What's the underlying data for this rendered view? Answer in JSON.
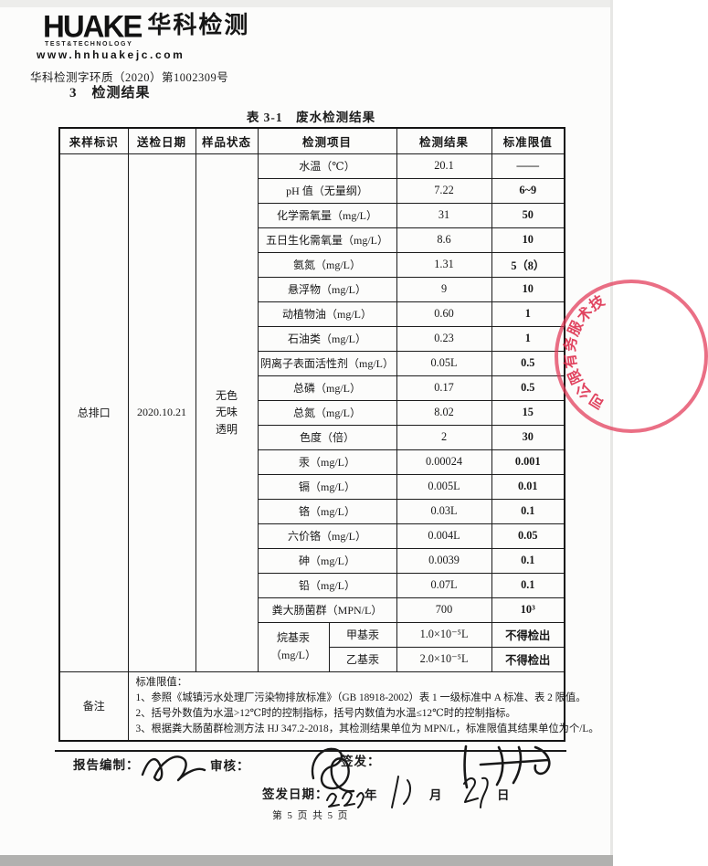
{
  "theme": {
    "stamp_red": "#e23856",
    "ink": "#1b1b1b"
  },
  "letterhead": {
    "logo_text": "HUAKE",
    "logo_cn": "华科检测",
    "logo_sub": "TEST&TECHNOLOGY",
    "website": "www.hnhuakejc.com",
    "doc_number": "华科检测字环质（2020）第1002309号"
  },
  "section_heading": "3　检测结果",
  "table_title": "表 3-1　废水检测结果",
  "table": {
    "headers": [
      "来样标识",
      "送检日期",
      "样品状态",
      "检测项目",
      "检测结果",
      "标准限值"
    ],
    "sample": {
      "id": "总排口",
      "date": "2020.10.21",
      "state": "无色\n无味\n透明"
    },
    "rows": [
      {
        "item": "水温（℃）",
        "result": "20.1",
        "limit": "——"
      },
      {
        "item": "pH 值（无量纲）",
        "result": "7.22",
        "limit": "6~9"
      },
      {
        "item": "化学需氧量（mg/L）",
        "result": "31",
        "limit": "50"
      },
      {
        "item": "五日生化需氧量（mg/L）",
        "result": "8.6",
        "limit": "10"
      },
      {
        "item": "氨氮（mg/L）",
        "result": "1.31",
        "limit": "5（8）"
      },
      {
        "item": "悬浮物（mg/L）",
        "result": "9",
        "limit": "10"
      },
      {
        "item": "动植物油（mg/L）",
        "result": "0.60",
        "limit": "1"
      },
      {
        "item": "石油类（mg/L）",
        "result": "0.23",
        "limit": "1"
      },
      {
        "item": "阴离子表面活性剂（mg/L）",
        "result": "0.05L",
        "limit": "0.5"
      },
      {
        "item": "总磷（mg/L）",
        "result": "0.17",
        "limit": "0.5"
      },
      {
        "item": "总氮（mg/L）",
        "result": "8.02",
        "limit": "15"
      },
      {
        "item": "色度（倍）",
        "result": "2",
        "limit": "30"
      },
      {
        "item": "汞（mg/L）",
        "result": "0.00024",
        "limit": "0.001"
      },
      {
        "item": "镉（mg/L）",
        "result": "0.005L",
        "limit": "0.01"
      },
      {
        "item": "铬（mg/L）",
        "result": "0.03L",
        "limit": "0.1"
      },
      {
        "item": "六价铬（mg/L）",
        "result": "0.004L",
        "limit": "0.05"
      },
      {
        "item": "砷（mg/L）",
        "result": "0.0039",
        "limit": "0.1"
      },
      {
        "item": "铅（mg/L）",
        "result": "0.07L",
        "limit": "0.1"
      },
      {
        "item": "粪大肠菌群（MPN/L）",
        "result": "700",
        "limit": "10³"
      }
    ],
    "alkyl": {
      "label": "烷基汞\n（mg/L）",
      "rows": [
        {
          "item": "甲基汞",
          "result": "1.0×10⁻⁵L",
          "limit": "不得检出"
        },
        {
          "item": "乙基汞",
          "result": "2.0×10⁻⁵L",
          "limit": "不得检出"
        }
      ]
    },
    "remarks_label": "备注",
    "remarks": [
      "标准限值：",
      "1、参照《城镇污水处理厂污染物排放标准》（GB 18918-2002）表 1 一级标准中 A 标准、表 2 限值。",
      "2、括号外数值为水温>12℃时的控制指标，括号内数值为水温≤12℃时的控制指标。",
      "3、根据粪大肠菌群检测方法 HJ 347.2-2018，其检测结果单位为 MPN/L，标准限值其结果单位为个/L。"
    ]
  },
  "stamp": {
    "text": "技术服务有限公司",
    "color": "#e23856"
  },
  "footer": {
    "prepared_label": "报告编制：",
    "reviewed_label": "审核：",
    "issued_label": "签发：",
    "issue_date_label": "签发日期：",
    "year_label": "年",
    "month_label": "月",
    "day_label": "日",
    "page_info": "第 5 页 共 5 页"
  }
}
